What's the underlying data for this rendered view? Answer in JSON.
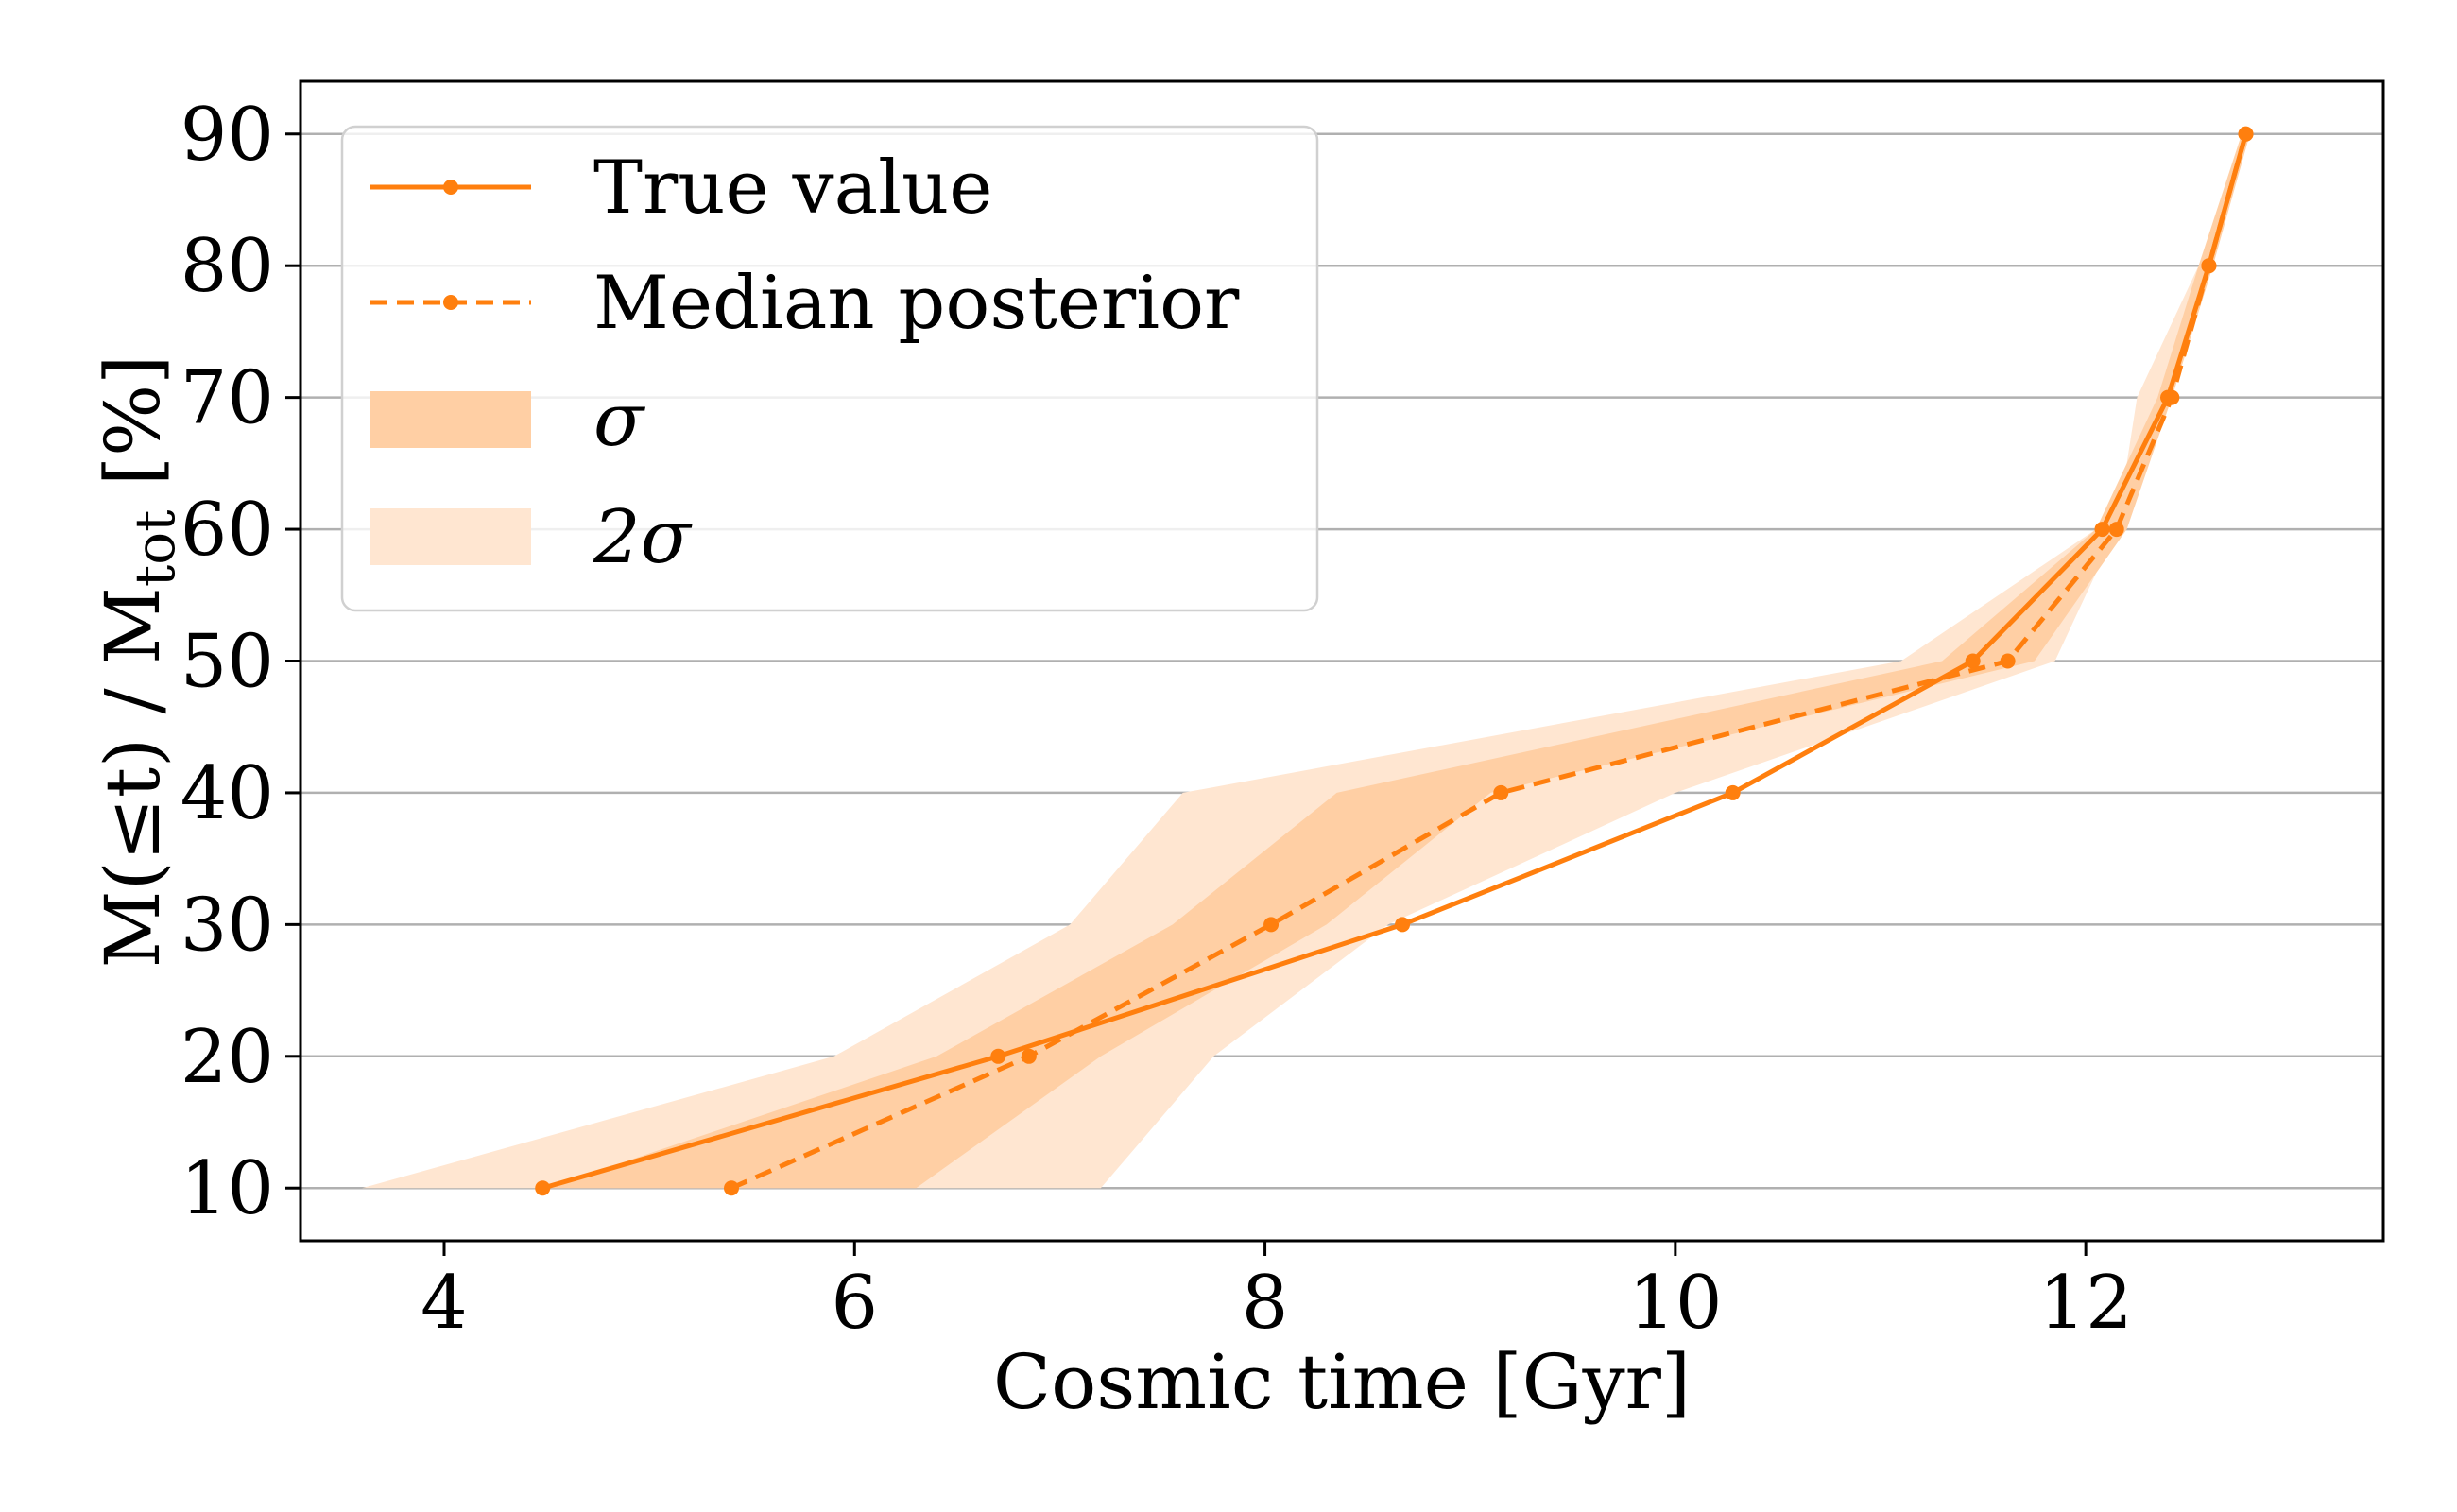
{
  "colors": {
    "line": "#ff7f0e",
    "sigma_band": "#ffcfa4",
    "two_sigma_band": "#ffe6d1",
    "grid": "#b0b0b0",
    "axis": "#000000"
  },
  "chart_data": {
    "type": "line",
    "xlabel": "Cosmic time [Gyr]",
    "ylabel_main": "M(≤t) / M",
    "ylabel_sub": "tot",
    "ylabel_suffix": " [%]",
    "xlim": [
      3.3,
      13.45
    ],
    "ylim": [
      6,
      94
    ],
    "xticks": [
      4,
      6,
      8,
      10,
      12
    ],
    "xtick_labels": [
      "4",
      "6",
      "8",
      "10",
      "12"
    ],
    "yticks": [
      10,
      20,
      30,
      40,
      50,
      60,
      70,
      80,
      90
    ],
    "ytick_labels": [
      "10",
      "20",
      "30",
      "40",
      "50",
      "60",
      "70",
      "80",
      "90"
    ],
    "grid": "horizontal",
    "legend_position": "top-left",
    "series": [
      {
        "name": "True value",
        "style": "solid",
        "x": [
          4.48,
          6.7,
          8.67,
          10.28,
          11.45,
          12.08,
          12.4,
          12.6,
          12.78
        ],
        "y": [
          10,
          20,
          30,
          40,
          50,
          60,
          70,
          80,
          90
        ]
      },
      {
        "name": "Median posterior",
        "style": "dashed",
        "x": [
          5.4,
          6.85,
          8.03,
          9.15,
          11.62,
          12.15,
          12.42,
          12.6,
          12.78
        ],
        "y": [
          10,
          20,
          30,
          40,
          50,
          60,
          70,
          80,
          90
        ]
      }
    ],
    "bands": [
      {
        "name": "2σ",
        "y": [
          10,
          20,
          30,
          40,
          50,
          60,
          70,
          80,
          90
        ],
        "x_low": [
          3.6,
          5.9,
          7.05,
          7.6,
          11.1,
          12.05,
          12.38,
          12.58,
          12.76
        ],
        "x_high": [
          7.2,
          7.75,
          8.6,
          10.0,
          11.85,
          12.15,
          12.25,
          12.55,
          12.8
        ]
      },
      {
        "name": "σ",
        "y": [
          10,
          20,
          30,
          40,
          50,
          60,
          70,
          80,
          90
        ],
        "x_low": [
          4.5,
          6.4,
          7.55,
          8.35,
          11.3,
          12.05,
          12.35,
          12.55,
          12.76
        ],
        "x_high": [
          6.3,
          7.2,
          8.3,
          9.1,
          11.75,
          12.2,
          12.42,
          12.62,
          12.8
        ]
      }
    ],
    "legend": [
      {
        "label": "True value",
        "kind": "solid-line"
      },
      {
        "label": "Median posterior",
        "kind": "dashed-line"
      },
      {
        "label": "σ",
        "kind": "sigma-band"
      },
      {
        "label": "2σ",
        "kind": "two-sigma-band"
      }
    ]
  }
}
